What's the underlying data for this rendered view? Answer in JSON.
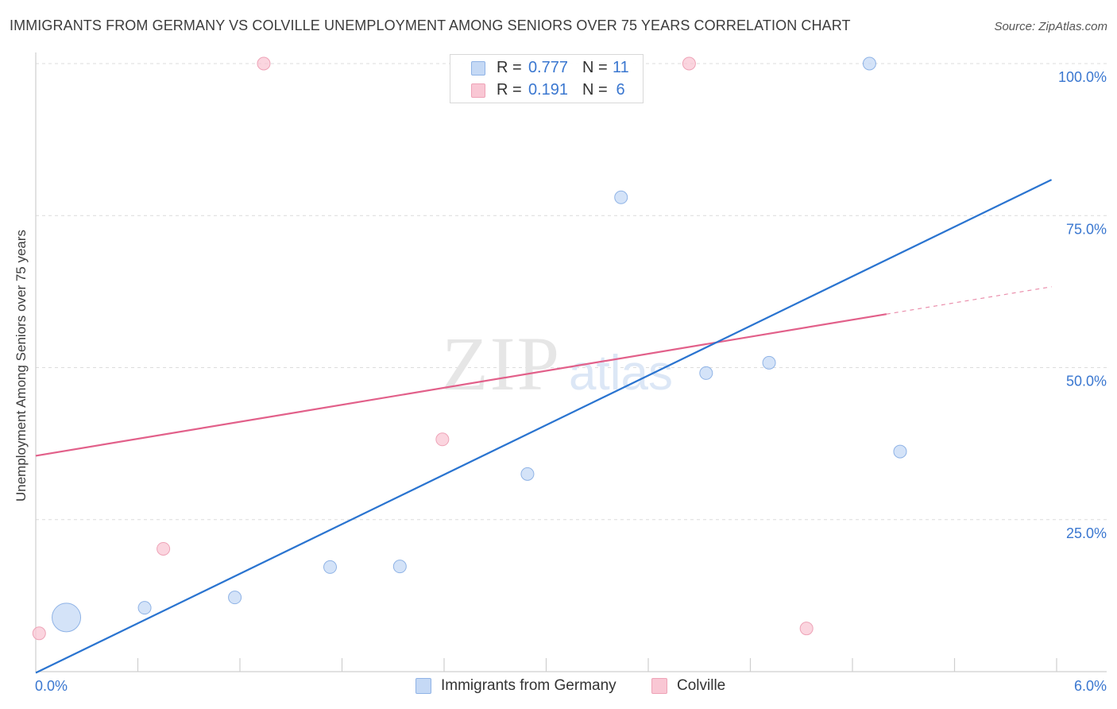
{
  "title": "IMMIGRANTS FROM GERMANY VS COLVILLE UNEMPLOYMENT AMONG SENIORS OVER 75 YEARS CORRELATION CHART",
  "source": "Source: ZipAtlas.com",
  "watermark": {
    "zip": "ZIP",
    "atlas": "atlas"
  },
  "colors": {
    "blue_fill": "#c5d9f5",
    "blue_stroke": "#8fb3e6",
    "blue_line": "#2a74d0",
    "pink_fill": "#f9c7d4",
    "pink_stroke": "#eea3b7",
    "pink_line": "#e2608a",
    "grid": "#dcdcdc",
    "axis_text": "#3a77d0"
  },
  "legend": {
    "rows": [
      {
        "r_label": "R =",
        "r_value": "0.777",
        "n_label": "N =",
        "n_value": "11"
      },
      {
        "r_label": "R =",
        "r_value": "0.191",
        "n_label": "N =",
        "n_value": "6"
      }
    ]
  },
  "chart_data": {
    "type": "scatter",
    "title": "IMMIGRANTS FROM GERMANY VS COLVILLE UNEMPLOYMENT AMONG SENIORS OVER 75 YEARS CORRELATION CHART",
    "xlabel": "",
    "ylabel": "Unemployment Among Seniors over 75 years",
    "xlim": [
      0,
      6
    ],
    "ylim": [
      0,
      100
    ],
    "x_tick_labels": [
      "0.0%",
      "6.0%"
    ],
    "y_ticks": [
      25,
      50,
      75,
      100
    ],
    "y_tick_labels": [
      "25.0%",
      "50.0%",
      "75.0%",
      "100.0%"
    ],
    "grid": true,
    "legend_position": "top-center",
    "series": [
      {
        "name": "Immigrants from Germany",
        "color": "blue",
        "points": [
          {
            "x": 0.18,
            "y": 8.9,
            "size": 3
          },
          {
            "x": 0.64,
            "y": 10.5,
            "size": 1
          },
          {
            "x": 1.17,
            "y": 12.2,
            "size": 1
          },
          {
            "x": 1.73,
            "y": 17.2,
            "size": 1
          },
          {
            "x": 2.14,
            "y": 17.3,
            "size": 1
          },
          {
            "x": 2.89,
            "y": 32.5,
            "size": 1
          },
          {
            "x": 3.44,
            "y": 78.0,
            "size": 1
          },
          {
            "x": 3.94,
            "y": 49.1,
            "size": 1
          },
          {
            "x": 4.31,
            "y": 50.8,
            "size": 1
          },
          {
            "x": 4.9,
            "y": 100.0,
            "size": 1
          },
          {
            "x": 5.08,
            "y": 36.2,
            "size": 1
          }
        ],
        "trend": {
          "x0": 0.0,
          "y0": -0.2,
          "x1": 5.97,
          "y1": 80.9
        }
      },
      {
        "name": "Colville",
        "color": "pink",
        "points": [
          {
            "x": 0.02,
            "y": 6.3,
            "size": 1
          },
          {
            "x": 0.75,
            "y": 20.2,
            "size": 1
          },
          {
            "x": 1.34,
            "y": 100.0,
            "size": 1
          },
          {
            "x": 2.39,
            "y": 38.2,
            "size": 1
          },
          {
            "x": 3.84,
            "y": 100.0,
            "size": 1
          },
          {
            "x": 4.53,
            "y": 7.1,
            "size": 1
          }
        ],
        "trend": {
          "x0": 0.0,
          "y0": 35.5,
          "x1": 5.0,
          "y1": 58.8
        },
        "trend_dashed_extension": {
          "x0": 5.0,
          "y0": 58.8,
          "x1": 5.97,
          "y1": 63.3
        }
      }
    ]
  }
}
